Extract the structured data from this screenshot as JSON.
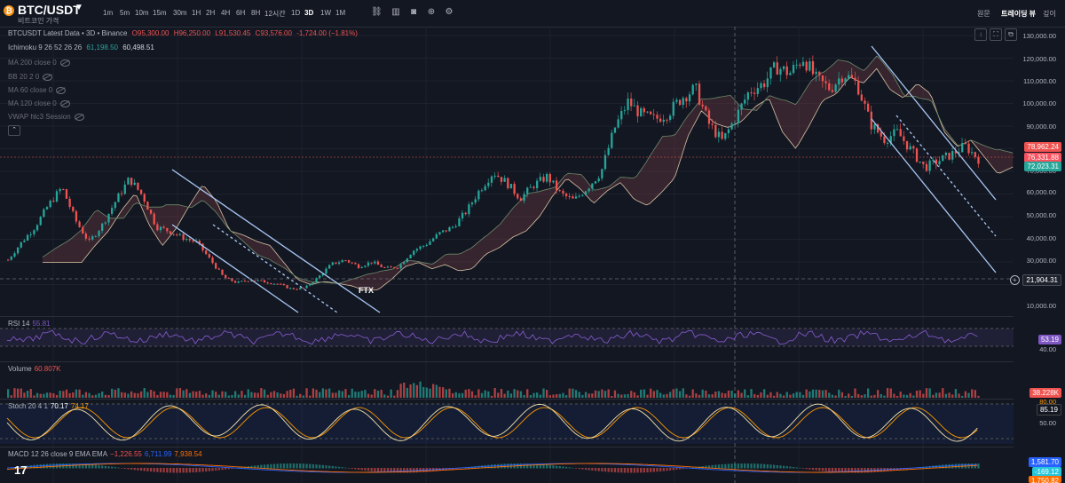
{
  "header": {
    "symbol": "BTC/USDT",
    "subtitle": "비트코인 가격",
    "timeframes": [
      "1m",
      "5m",
      "10m",
      "15m",
      "30m",
      "1H",
      "2H",
      "4H",
      "6H",
      "8H",
      "12시간",
      "1D",
      "3D",
      "1W",
      "1M"
    ],
    "active_timeframe": "3D",
    "right_tabs": [
      "원문",
      "트레이딩 뷰",
      "깊이"
    ],
    "active_right_tab": "트레이딩 뷰"
  },
  "legend": {
    "main": {
      "name": "BTCUSDT Latest Data • 3D • Binance",
      "o": "O95,300.00",
      "h": "H96,250.00",
      "l": "L91,530.45",
      "c": "C93,576.00",
      "chg": "-1,724.00 (−1.81%)"
    },
    "ichimoku": {
      "name": "Ichimoku 9 26 52 26 26",
      "v1": "61,198.50",
      "v2": "60,498.51"
    },
    "hidden": [
      "MA 200 close 0",
      "BB 20 2 0",
      "MA 60 close 0",
      "MA 120 close 0",
      "VWAP hlc3 Session"
    ],
    "rsi": {
      "name": "RSI 14",
      "v": "55.81"
    },
    "volume": {
      "name": "Volume",
      "v": "60.807K"
    },
    "stoch": {
      "name": "Stoch 20 4 1",
      "v1": "70.17",
      "v2": "74.17"
    },
    "macd": {
      "name": "MACD 12 26 close 9 EMA EMA",
      "v1": "−1,226.55",
      "v2": "6,711.99",
      "v3": "7,938.54"
    }
  },
  "price_axis": [
    "130,000.00",
    "120,000.00",
    "110,000.00",
    "100,000.00",
    "90,000.00",
    "70,000.00",
    "60,000.00",
    "50,000.00",
    "40,000.00",
    "30,000.00",
    "20,000.00",
    "10,000.00"
  ],
  "price_tags": {
    "p1": "78,962.24",
    "p2": "76,331.88",
    "p3": "72,023.31",
    "crosshair": "21,904.31"
  },
  "rsi_axis": {
    "tag": "53.19",
    "low": "40.00"
  },
  "vol_tag": "38.228K",
  "stoch_axis": {
    "tag1": "85.19",
    "top": "80.00",
    "mid": "50.00"
  },
  "macd_tags": {
    "t1": "1,581.70",
    "t2": "-169.12",
    "t3": "1,750.82"
  },
  "annotation": "FTX",
  "colors": {
    "bg": "#131722",
    "up": "#26a69a",
    "down": "#ef5350",
    "rsi": "#7e57c2",
    "stochK": "#f5b84a",
    "stochD": "#ff9800"
  },
  "chart_data": {
    "type": "candlestick",
    "close_approx": [
      30000,
      38000,
      45000,
      55000,
      63000,
      48000,
      38000,
      46000,
      57000,
      67000,
      59000,
      45000,
      43000,
      40000,
      38000,
      30000,
      22000,
      19500,
      21000,
      20000,
      19000,
      16800,
      17000,
      22000,
      28000,
      30000,
      27000,
      29000,
      26000,
      27000,
      34000,
      37000,
      42000,
      45000,
      52000,
      62000,
      70000,
      65000,
      58000,
      64000,
      68000,
      60000,
      57000,
      63000,
      70000,
      90000,
      102000,
      96000,
      94000,
      97000,
      104000,
      108000,
      92000,
      84000,
      95000,
      107000,
      110000,
      118000,
      115000,
      122000,
      112000,
      108000,
      115000,
      110000,
      92000,
      85000,
      88000,
      80000,
      72000,
      75000,
      78000,
      82000,
      76000
    ],
    "ylim": [
      8000,
      133000
    ]
  }
}
